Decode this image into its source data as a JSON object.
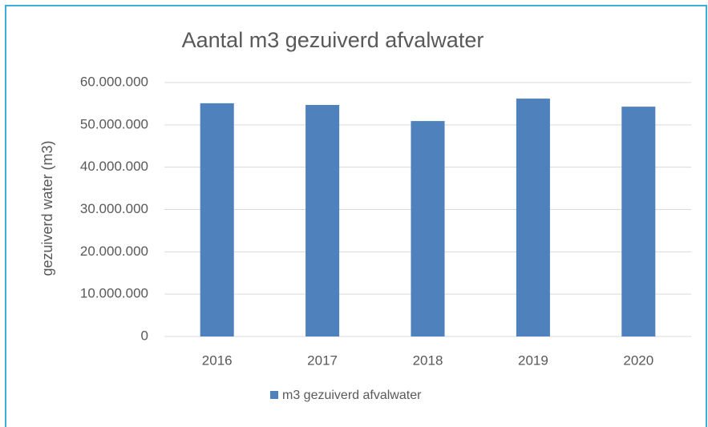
{
  "chart_data": {
    "type": "bar",
    "title": "Aantal m3 gezuiverd afvalwater",
    "y_label": "gezuiverd water (m3)",
    "categories": [
      "2016",
      "2017",
      "2018",
      "2019",
      "2020"
    ],
    "series": [
      {
        "name": "m3 gezuiverd afvalwater",
        "color": "#4f81bd",
        "values": [
          55100000,
          54700000,
          50900000,
          56200000,
          54300000
        ]
      }
    ],
    "ylim": [
      0,
      60000000
    ],
    "yticks": [
      0,
      {
        "value": 10000000,
        "label": "10.000.000"
      },
      {
        "value": 20000000,
        "label": "20.000.000"
      },
      {
        "value": 30000000,
        "label": "30.000.000"
      },
      {
        "value": 40000000,
        "label": "40.000.000"
      },
      {
        "value": 50000000,
        "label": "50.000.000"
      },
      {
        "value": 60000000,
        "label": "60.000.000"
      }
    ],
    "grid": true,
    "legend": "bottom"
  }
}
